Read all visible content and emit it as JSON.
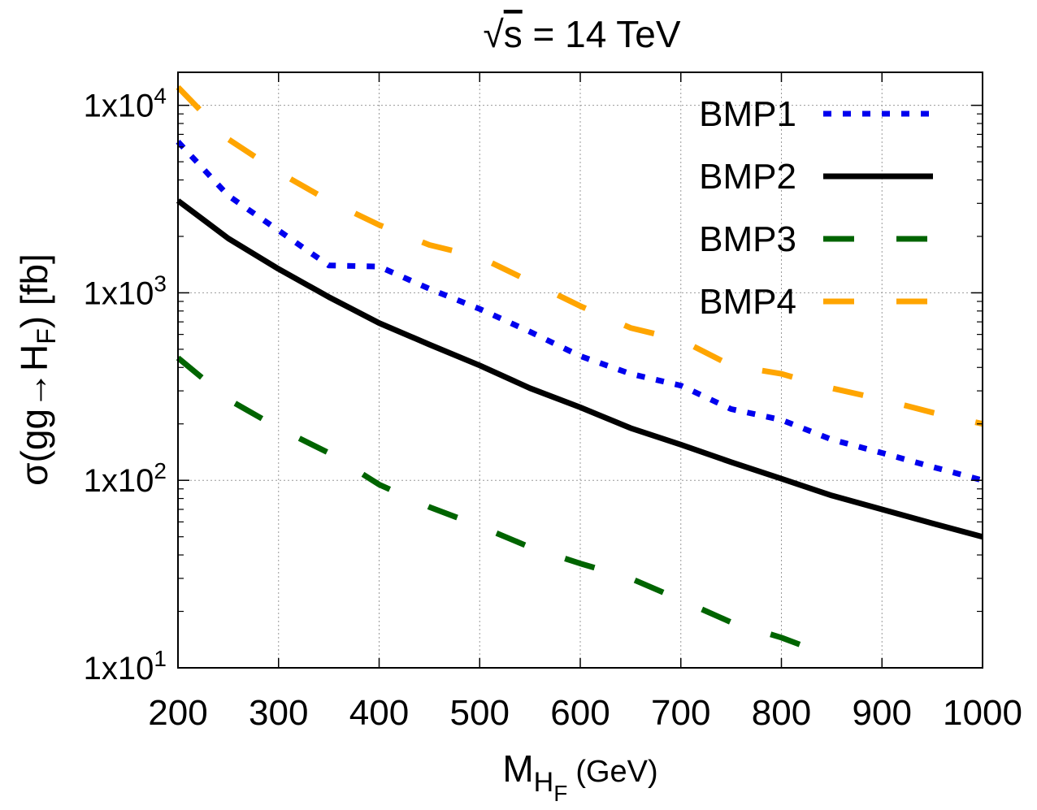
{
  "chart_data": {
    "type": "line",
    "title": "√s = 14 TeV",
    "title_parts": {
      "sqrt": "√",
      "var": "s",
      "rest": " = 14 TeV"
    },
    "xlabel": {
      "main": "M",
      "sub": "H",
      "subsub": "F",
      "unit": "(GeV)"
    },
    "ylabel": {
      "pre": "σ(gg",
      "arrow": "→",
      "H": "H",
      "sub": "F",
      "post": ") [fb]"
    },
    "x_scale": "linear",
    "y_scale": "log10",
    "xlim": [
      200,
      1000
    ],
    "ylim": [
      10,
      15000
    ],
    "grid": true,
    "legend_position": "top-right",
    "x_ticks": [
      {
        "value": 200,
        "label": "200"
      },
      {
        "value": 300,
        "label": "300"
      },
      {
        "value": 400,
        "label": "400"
      },
      {
        "value": 500,
        "label": "500"
      },
      {
        "value": 600,
        "label": "600"
      },
      {
        "value": 700,
        "label": "700"
      },
      {
        "value": 800,
        "label": "800"
      },
      {
        "value": 900,
        "label": "900"
      },
      {
        "value": 1000,
        "label": "1000"
      }
    ],
    "y_ticks": [
      {
        "value": 10,
        "base": "1x10",
        "exp": "1"
      },
      {
        "value": 100,
        "base": "1x10",
        "exp": "2"
      },
      {
        "value": 1000,
        "base": "1x10",
        "exp": "3"
      },
      {
        "value": 10000,
        "base": "1x10",
        "exp": "4"
      }
    ],
    "x": [
      200,
      250,
      300,
      350,
      400,
      450,
      500,
      550,
      600,
      650,
      700,
      750,
      800,
      850,
      900,
      950,
      1000
    ],
    "series": [
      {
        "name": "BMP1",
        "color": "#0000ee",
        "style": "dotted",
        "values": [
          6400,
          3300,
          2150,
          1400,
          1380,
          1050,
          820,
          620,
          460,
          370,
          320,
          240,
          210,
          165,
          140,
          118,
          100
        ]
      },
      {
        "name": "BMP2",
        "color": "#000000",
        "style": "solid",
        "values": [
          3100,
          1950,
          1340,
          950,
          690,
          530,
          410,
          310,
          245,
          190,
          155,
          125,
          102,
          83,
          70,
          59,
          50
        ]
      },
      {
        "name": "BMP3",
        "color": "#006400",
        "style": "dashed",
        "values": [
          450,
          270,
          190,
          140,
          95,
          72,
          57,
          44,
          36,
          30,
          23,
          17.5,
          14.5,
          11.5,
          null,
          null,
          null
        ]
      },
      {
        "name": "BMP4",
        "color": "#ffa500",
        "style": "long-dashed",
        "values": [
          12500,
          6600,
          4400,
          3100,
          2300,
          1800,
          1550,
          1150,
          850,
          650,
          560,
          410,
          370,
          310,
          270,
          230,
          200
        ]
      }
    ]
  }
}
